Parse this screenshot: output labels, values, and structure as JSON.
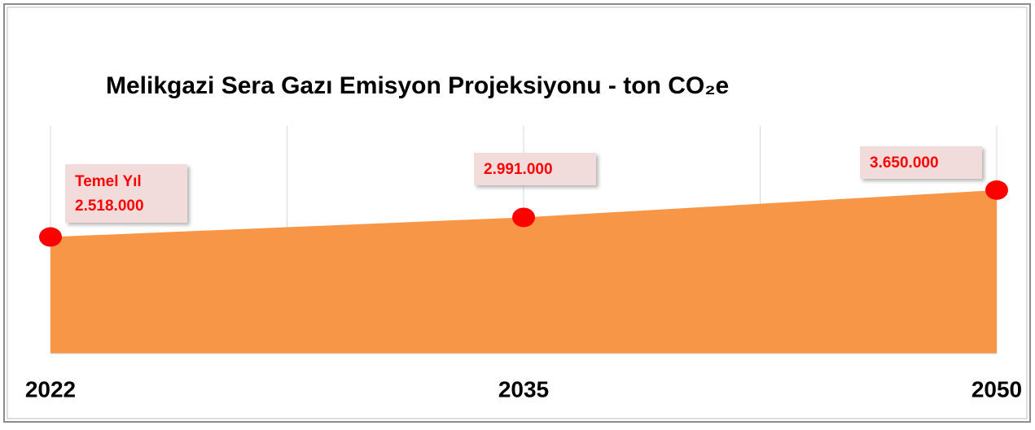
{
  "chart_data": {
    "type": "area",
    "title": "Melikgazi Sera Gazı Emisyon Projeksiyonu - ton CO₂e",
    "categories": [
      "2022",
      "2035",
      "2050"
    ],
    "values": [
      2518000,
      2991000,
      3650000
    ],
    "value_labels": [
      "2.518.000",
      "2.991.000",
      "3.650.000"
    ],
    "annotations": [
      "Temel Yıl"
    ],
    "color": "#f79646",
    "marker_color": "#ff0000",
    "label_color": "#ff0000",
    "ylim": [
      -300000,
      5200000
    ]
  }
}
